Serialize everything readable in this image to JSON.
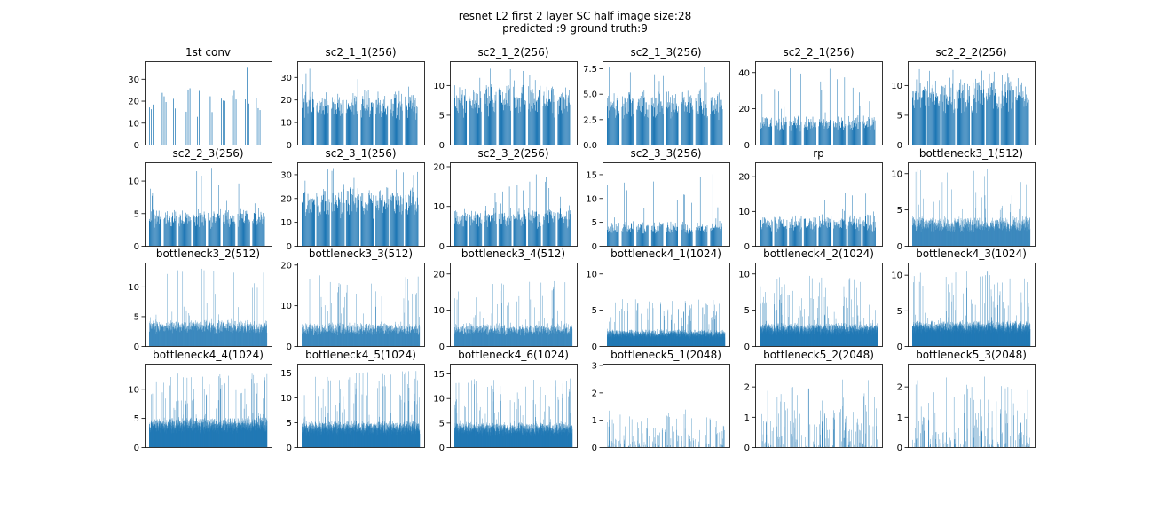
{
  "figure": {
    "title_line1": "resnet L2 first 2 layer SC half image size:28",
    "title_line2": "predicted :9 ground truth:9",
    "bar_color": "#1f77b4",
    "axes_color": "#000000"
  },
  "chart_data": [
    {
      "type": "bar",
      "title": "1st conv",
      "yticks": [
        0,
        10,
        20,
        30
      ],
      "ylim": [
        0,
        38
      ],
      "n_bars": 64,
      "seed": 11,
      "ymax_bar": 36,
      "mean": 20,
      "groups": 10,
      "gap": 0.55,
      "thin": true
    },
    {
      "type": "bar",
      "title": "sc2_1_1(256)",
      "yticks": [
        0,
        10,
        20,
        30
      ],
      "ylim": [
        0,
        37
      ],
      "n_bars": 256,
      "seed": 12,
      "ymax_bar": 34,
      "mean": 19,
      "groups": 8,
      "gap": 0.18
    },
    {
      "type": "bar",
      "title": "sc2_1_2(256)",
      "yticks": [
        0,
        5,
        10
      ],
      "ylim": [
        0,
        14
      ],
      "n_bars": 256,
      "seed": 13,
      "ymax_bar": 13,
      "mean": 8,
      "groups": 8,
      "gap": 0.18
    },
    {
      "type": "bar",
      "title": "sc2_1_3(256)",
      "yticks": [
        0.0,
        2.5,
        5.0,
        7.5
      ],
      "ylim": [
        0,
        8.2
      ],
      "n_bars": 256,
      "seed": 14,
      "ymax_bar": 7.8,
      "mean": 4.3,
      "groups": 8,
      "gap": 0.18
    },
    {
      "type": "bar",
      "title": "sc2_2_1(256)",
      "yticks": [
        0,
        20,
        40
      ],
      "ylim": [
        0,
        46
      ],
      "n_bars": 256,
      "seed": 15,
      "ymax_bar": 43,
      "mean": 13,
      "groups": 8,
      "gap": 0.18
    },
    {
      "type": "bar",
      "title": "sc2_2_2(256)",
      "yticks": [
        0,
        5,
        10
      ],
      "ylim": [
        0,
        14
      ],
      "n_bars": 256,
      "seed": 16,
      "ymax_bar": 12.8,
      "mean": 9,
      "groups": 8,
      "gap": 0.12
    },
    {
      "type": "bar",
      "title": "sc2_2_3(256)",
      "yticks": [
        0,
        5,
        10
      ],
      "ylim": [
        0,
        12.8
      ],
      "n_bars": 256,
      "seed": 17,
      "ymax_bar": 12,
      "mean": 4.6,
      "groups": 8,
      "gap": 0.18
    },
    {
      "type": "bar",
      "title": "sc2_3_1(256)",
      "yticks": [
        0,
        10,
        20,
        30
      ],
      "ylim": [
        0,
        35
      ],
      "n_bars": 256,
      "seed": 18,
      "ymax_bar": 33,
      "mean": 20,
      "groups": 8,
      "gap": 0.12
    },
    {
      "type": "bar",
      "title": "sc2_3_2(256)",
      "yticks": [
        0,
        10,
        20
      ],
      "ylim": [
        0,
        21
      ],
      "n_bars": 256,
      "seed": 19,
      "ymax_bar": 18,
      "mean": 7.5,
      "groups": 8,
      "gap": 0.15
    },
    {
      "type": "bar",
      "title": "sc2_3_3(256)",
      "yticks": [
        0,
        5,
        10,
        15
      ],
      "ylim": [
        0,
        17.5
      ],
      "n_bars": 256,
      "seed": 20,
      "ymax_bar": 15.3,
      "mean": 4,
      "groups": 8,
      "gap": 0.2
    },
    {
      "type": "bar",
      "title": "rp",
      "yticks": [
        0,
        10,
        20
      ],
      "ylim": [
        0,
        24
      ],
      "n_bars": 256,
      "seed": 21,
      "ymax_bar": 17.5,
      "mean": 7,
      "groups": 8,
      "gap": 0.15
    },
    {
      "type": "bar",
      "title": "bottleneck3_1(512)",
      "yticks": [
        0,
        5,
        10
      ],
      "ylim": [
        0,
        11.5
      ],
      "n_bars": 512,
      "seed": 22,
      "ymax_bar": 10.6,
      "mean": 3.2,
      "groups": 16,
      "gap": 0.0
    },
    {
      "type": "bar",
      "title": "bottleneck3_2(512)",
      "yticks": [
        0,
        5,
        10
      ],
      "ylim": [
        0,
        14
      ],
      "n_bars": 512,
      "seed": 23,
      "ymax_bar": 13,
      "mean": 3.5,
      "groups": 16,
      "gap": 0.0
    },
    {
      "type": "bar",
      "title": "bottleneck3_3(512)",
      "yticks": [
        0,
        10,
        20
      ],
      "ylim": [
        0,
        20.5
      ],
      "n_bars": 512,
      "seed": 24,
      "ymax_bar": 17.5,
      "mean": 4.5,
      "groups": 16,
      "gap": 0.0
    },
    {
      "type": "bar",
      "title": "bottleneck3_4(512)",
      "yticks": [
        0,
        10,
        20
      ],
      "ylim": [
        0,
        23
      ],
      "n_bars": 512,
      "seed": 25,
      "ymax_bar": 18,
      "mean": 5,
      "groups": 16,
      "gap": 0.0
    },
    {
      "type": "bar",
      "title": "bottleneck4_1(1024)",
      "yticks": [
        0,
        5,
        10
      ],
      "ylim": [
        0,
        11.5
      ],
      "n_bars": 1024,
      "seed": 26,
      "ymax_bar": 6.5,
      "mean": 1.8,
      "groups": 1,
      "gap": 0.0
    },
    {
      "type": "bar",
      "title": "bottleneck4_2(1024)",
      "yticks": [
        0,
        5,
        10
      ],
      "ylim": [
        0,
        11.5
      ],
      "n_bars": 1024,
      "seed": 27,
      "ymax_bar": 9.8,
      "mean": 2.5,
      "groups": 1,
      "gap": 0.0
    },
    {
      "type": "bar",
      "title": "bottleneck4_3(1024)",
      "yticks": [
        0,
        5,
        10
      ],
      "ylim": [
        0,
        11.7
      ],
      "n_bars": 1024,
      "seed": 28,
      "ymax_bar": 10.5,
      "mean": 2.8,
      "groups": 1,
      "gap": 0.0
    },
    {
      "type": "bar",
      "title": "bottleneck4_4(1024)",
      "yticks": [
        0,
        5,
        10
      ],
      "ylim": [
        0,
        14.3
      ],
      "n_bars": 1024,
      "seed": 29,
      "ymax_bar": 12.8,
      "mean": 4,
      "groups": 1,
      "gap": 0.0
    },
    {
      "type": "bar",
      "title": "bottleneck4_5(1024)",
      "yticks": [
        0,
        5,
        10,
        15
      ],
      "ylim": [
        0,
        16.8
      ],
      "n_bars": 1024,
      "seed": 30,
      "ymax_bar": 15.5,
      "mean": 4.2,
      "groups": 1,
      "gap": 0.0
    },
    {
      "type": "bar",
      "title": "bottleneck4_6(1024)",
      "yticks": [
        0,
        5,
        10,
        15
      ],
      "ylim": [
        0,
        17
      ],
      "n_bars": 1024,
      "seed": 31,
      "ymax_bar": 14,
      "mean": 4,
      "groups": 1,
      "gap": 0.0
    },
    {
      "type": "bar",
      "title": "bottleneck5_1(2048)",
      "yticks": [
        0,
        1,
        2,
        3
      ],
      "ylim": [
        0,
        3.05
      ],
      "n_bars": 2048,
      "seed": 32,
      "ymax_bar": 1.4,
      "mean": 0.15,
      "groups": 1,
      "gap": 0.0,
      "sparse": true
    },
    {
      "type": "bar",
      "title": "bottleneck5_2(2048)",
      "yticks": [
        0,
        1,
        2
      ],
      "ylim": [
        0,
        2.75
      ],
      "n_bars": 2048,
      "seed": 33,
      "ymax_bar": 2.4,
      "mean": 0.2,
      "groups": 1,
      "gap": 0.0,
      "sparse": true
    },
    {
      "type": "bar",
      "title": "bottleneck5_3(2048)",
      "yticks": [
        0,
        1,
        2
      ],
      "ylim": [
        0,
        2.75
      ],
      "n_bars": 2048,
      "seed": 34,
      "ymax_bar": 2.2,
      "mean": 0.18,
      "groups": 1,
      "gap": 0.0,
      "sparse": true
    }
  ]
}
